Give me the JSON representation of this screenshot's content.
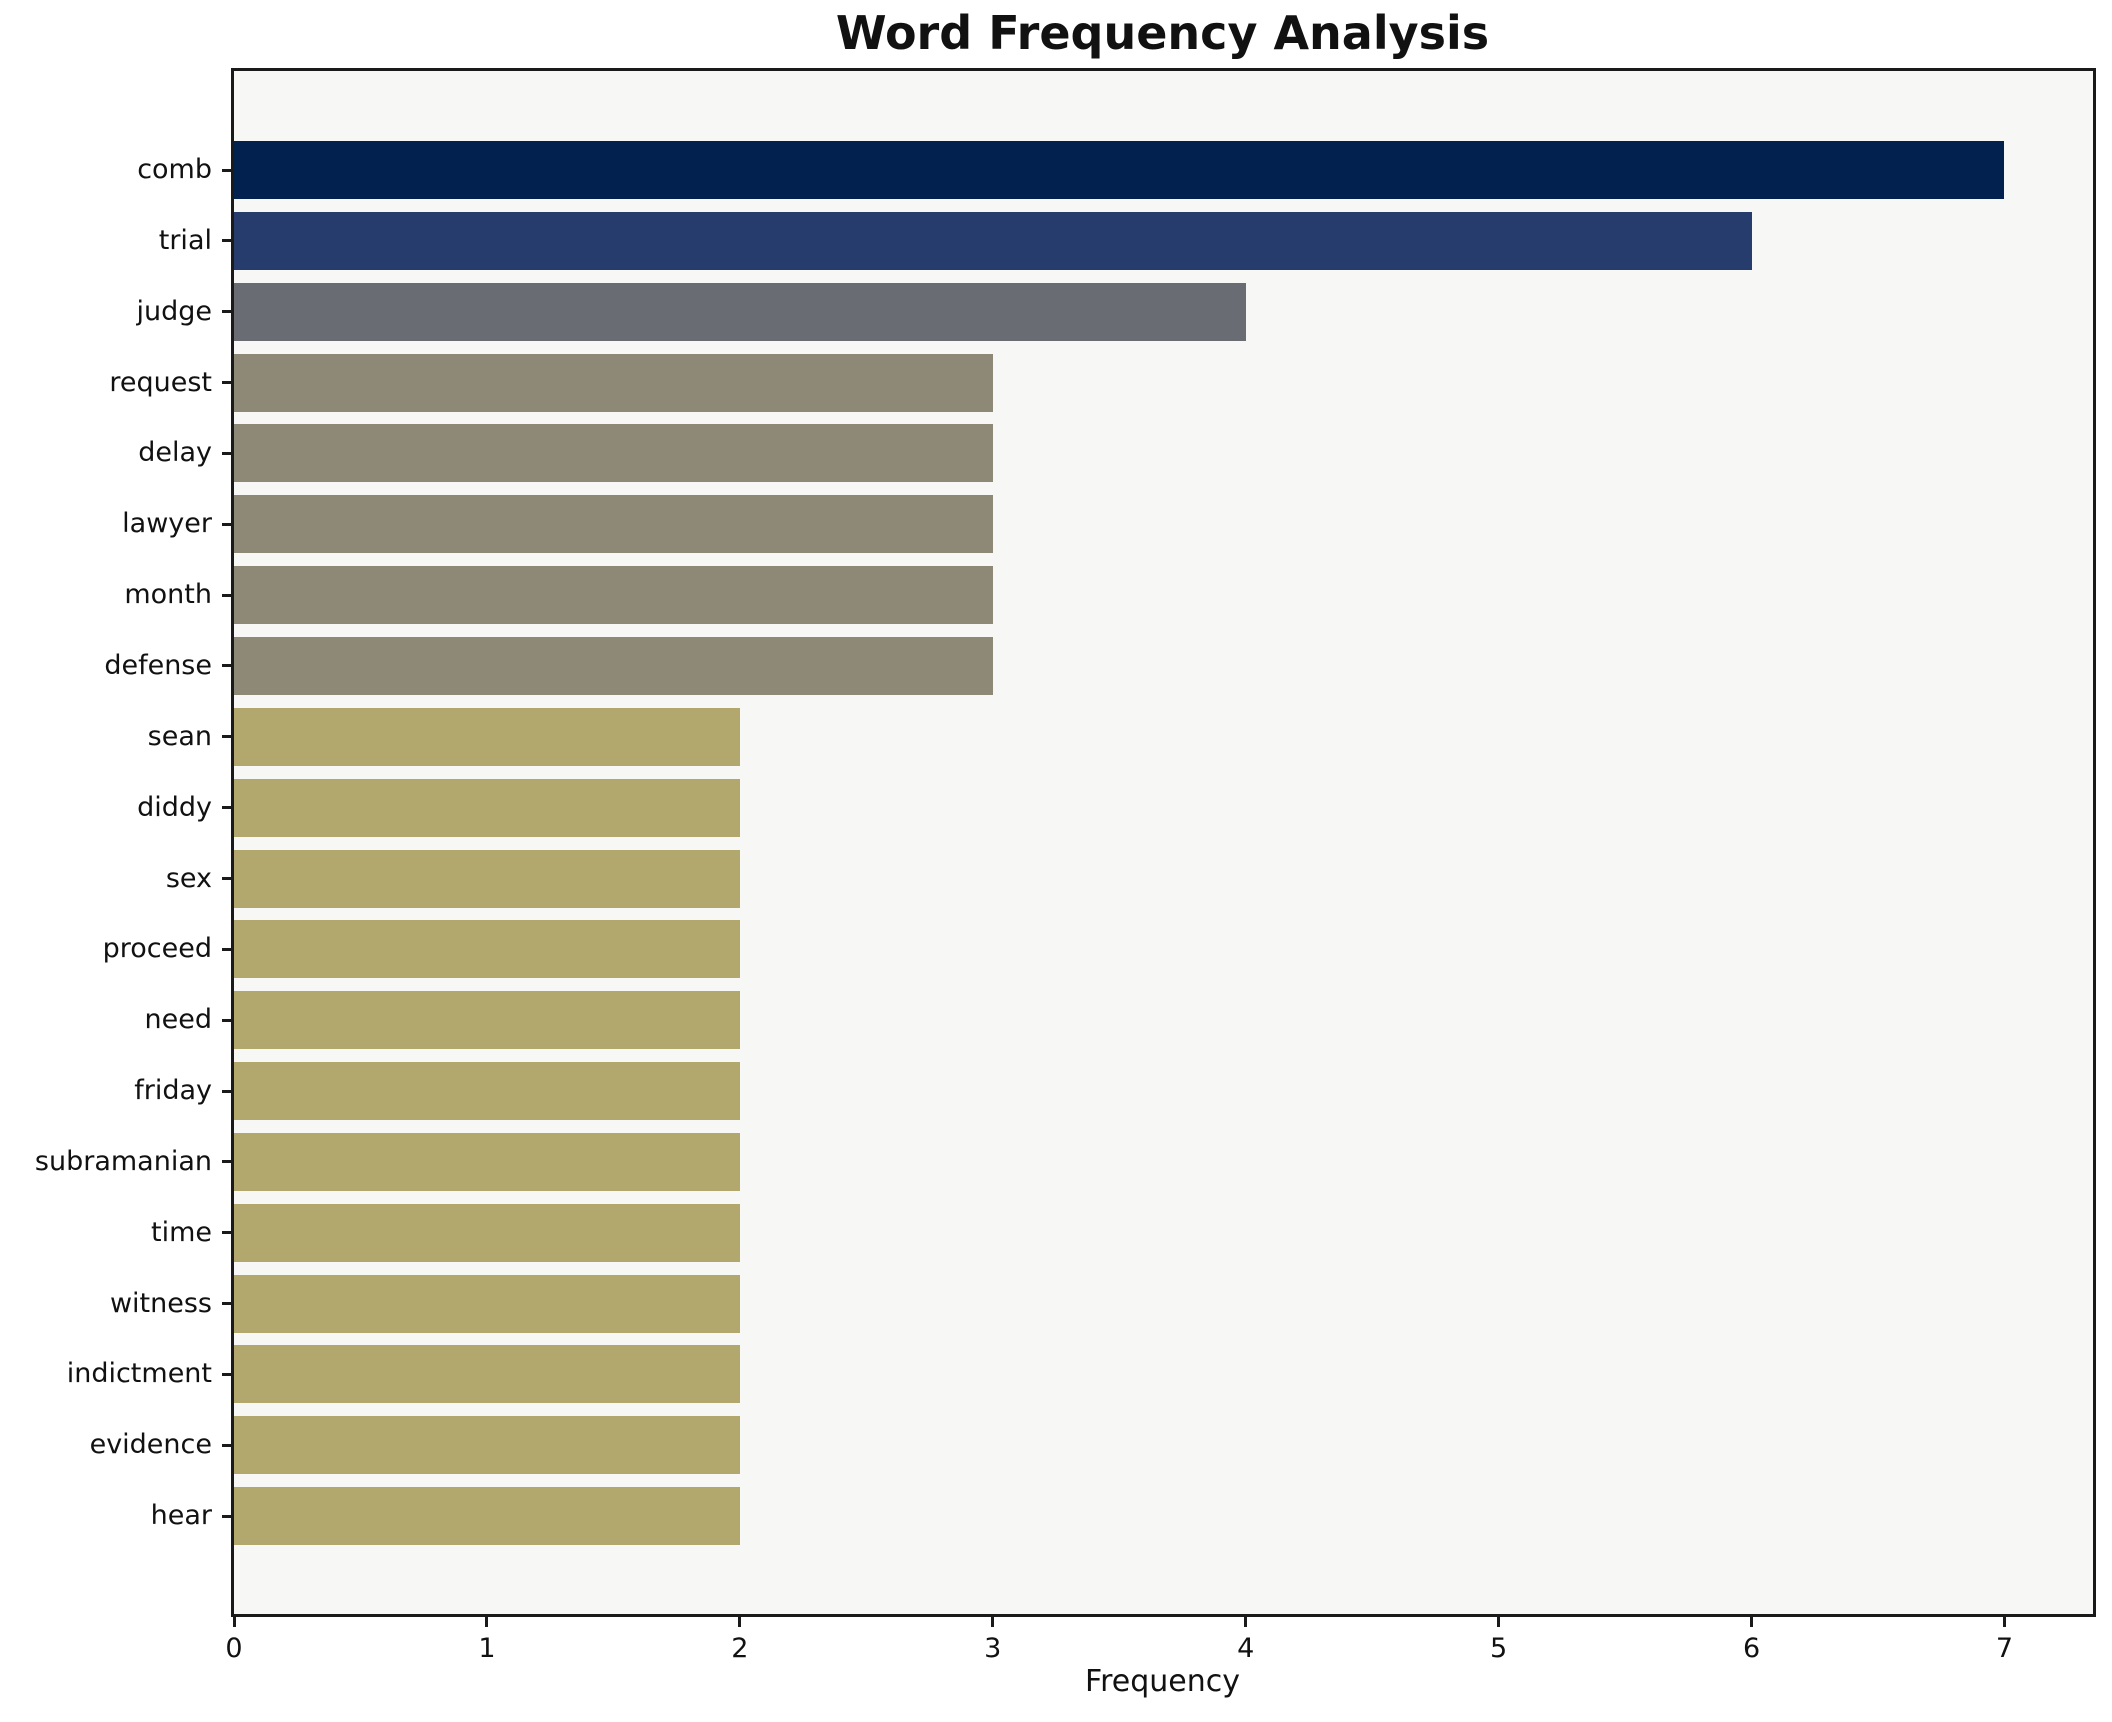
{
  "chart_data": {
    "type": "bar",
    "orientation": "horizontal",
    "title": "Word Frequency Analysis",
    "xlabel": "Frequency",
    "ylabel": "",
    "categories": [
      "comb",
      "trial",
      "judge",
      "request",
      "delay",
      "lawyer",
      "month",
      "defense",
      "sean",
      "diddy",
      "sex",
      "proceed",
      "need",
      "friday",
      "subramanian",
      "time",
      "witness",
      "indictment",
      "evidence",
      "hear"
    ],
    "values": [
      7,
      6,
      4,
      3,
      3,
      3,
      3,
      3,
      2,
      2,
      2,
      2,
      2,
      2,
      2,
      2,
      2,
      2,
      2,
      2
    ],
    "bar_colors": [
      "#03214f",
      "#253c6d",
      "#6a6c73",
      "#8e8977",
      "#8e8977",
      "#8e8977",
      "#8e8977",
      "#8e8977",
      "#b2a76c",
      "#b2a76c",
      "#b2a76c",
      "#b2a76c",
      "#b2a76c",
      "#b2a76c",
      "#b2a76c",
      "#b2a76c",
      "#b2a76c",
      "#b2a76c",
      "#b2a76c",
      "#b2a76c"
    ],
    "xlim": [
      0,
      7.35
    ],
    "x_ticks": [
      0,
      1,
      2,
      3,
      4,
      5,
      6,
      7
    ],
    "grid": false,
    "legend": null,
    "plot_background": "#f7f7f6",
    "axis_color": "#1a1a1a",
    "text_color": "#111111"
  }
}
